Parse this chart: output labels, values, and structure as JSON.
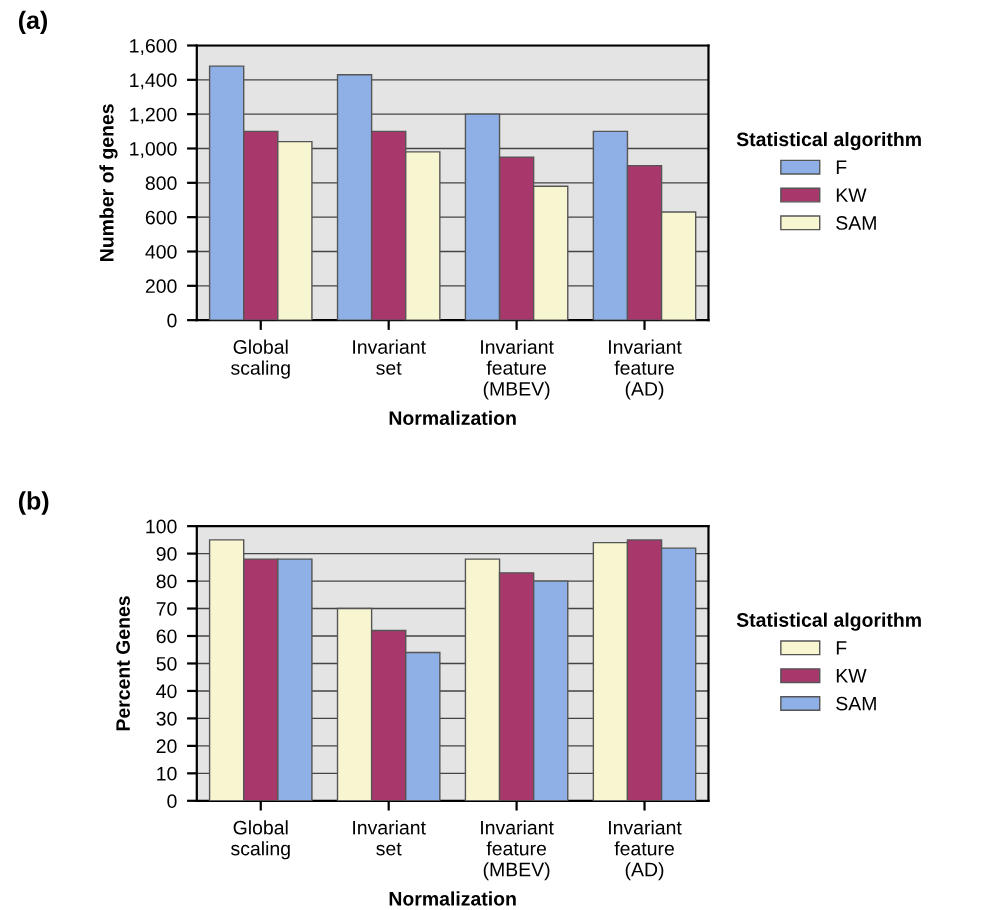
{
  "chart_data": [
    {
      "type": "bar",
      "title": "(a)",
      "ylabel": "Number of genes",
      "xlabel": "Normalization",
      "legend_title": "Statistical algorithm",
      "categories": [
        "Global\nscaling",
        "Invariant\nset",
        "Invariant\nfeature\n(MBEV)",
        "Invariant\nfeature\n(AD)"
      ],
      "series": [
        {
          "name": "F",
          "color": "#8fb0e6",
          "values": [
            1480,
            1430,
            1200,
            1100
          ]
        },
        {
          "name": "KW",
          "color": "#a8386c",
          "values": [
            1100,
            1100,
            950,
            900
          ]
        },
        {
          "name": "SAM",
          "color": "#f8f6d0",
          "values": [
            1040,
            980,
            780,
            630
          ]
        }
      ],
      "ylim": [
        0,
        1600
      ],
      "yticks": [
        0,
        {
          "value": 200,
          "label": "200"
        },
        {
          "value": 400,
          "label": "400"
        },
        {
          "value": 600,
          "label": "600"
        },
        {
          "value": 800,
          "label": "800"
        },
        {
          "value": 1000,
          "label": "1,000"
        },
        {
          "value": 1200,
          "label": "1,200"
        },
        {
          "value": 1400,
          "label": "1,400"
        },
        {
          "value": 1600,
          "label": "1,600"
        }
      ],
      "grid": "y",
      "legend": "right"
    },
    {
      "type": "bar",
      "title": "(b)",
      "ylabel": "Percent Genes",
      "xlabel": "Normalization",
      "legend_title": "Statistical algorithm",
      "categories": [
        "Global\nscaling",
        "Invariant\nset",
        "Invariant\nfeature\n(MBEV)",
        "Invariant\nfeature\n(AD)"
      ],
      "series": [
        {
          "name": "F",
          "color": "#f8f6d0",
          "values": [
            95,
            70,
            88,
            94
          ]
        },
        {
          "name": "KW",
          "color": "#a8386c",
          "values": [
            88,
            62,
            83,
            95
          ]
        },
        {
          "name": "SAM",
          "color": "#8fb0e6",
          "values": [
            88,
            54,
            80,
            92
          ]
        }
      ],
      "ylim": [
        0,
        100
      ],
      "yticks": [
        0,
        10,
        20,
        30,
        40,
        50,
        60,
        70,
        80,
        90,
        100
      ],
      "grid": "y",
      "legend": "right"
    }
  ]
}
